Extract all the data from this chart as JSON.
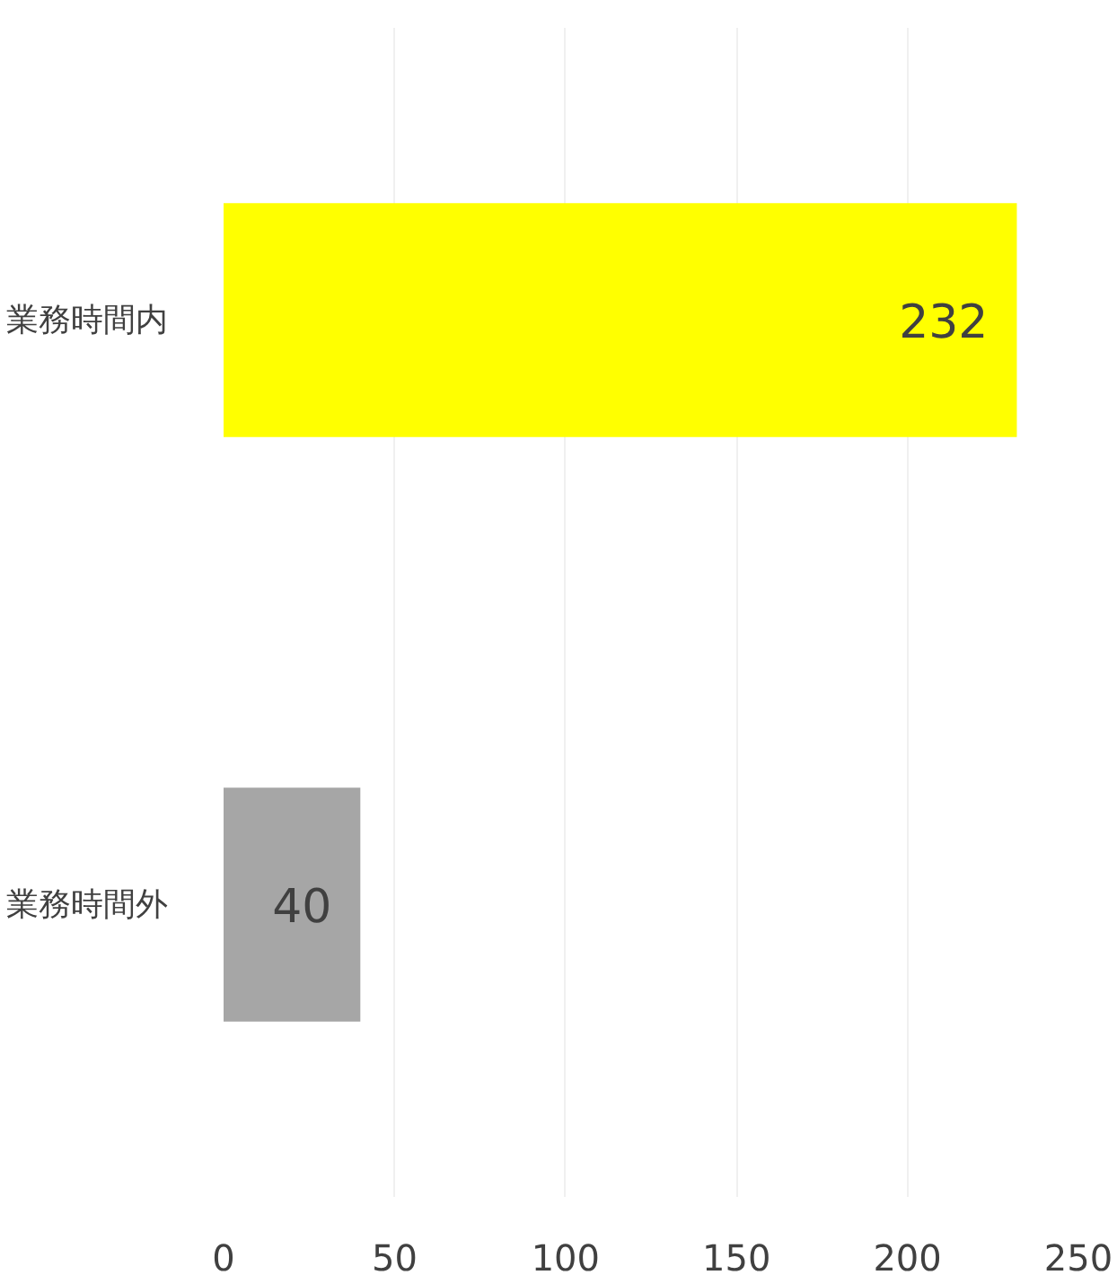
{
  "chart_data": {
    "type": "bar",
    "orientation": "horizontal",
    "categories": [
      "業務時間内",
      "業務時間外"
    ],
    "values": [
      232,
      40
    ],
    "colors": [
      "#ffff00",
      "#a6a6a6"
    ],
    "xlim": [
      0,
      250
    ],
    "xticks": [
      0,
      50,
      100,
      150,
      200,
      250
    ],
    "grid": "x",
    "data_labels": true
  }
}
